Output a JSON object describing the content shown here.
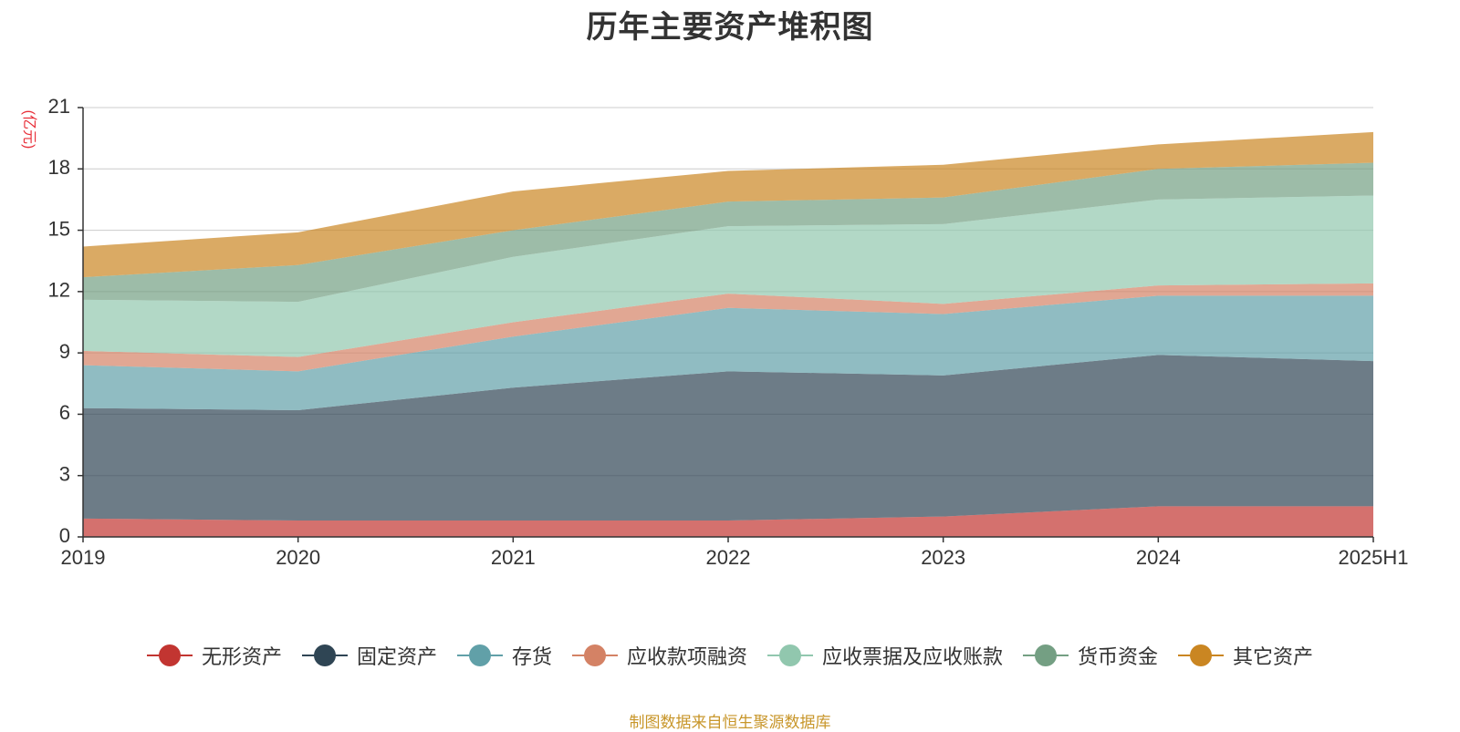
{
  "chart_data": {
    "type": "area",
    "title": "历年主要资产堆积图",
    "ylabel": "(亿元)",
    "xlabel": "",
    "categories": [
      "2019",
      "2020",
      "2021",
      "2022",
      "2023",
      "2024",
      "2025H1"
    ],
    "ylim": [
      0,
      21
    ],
    "yticks": [
      0,
      3,
      6,
      9,
      12,
      15,
      18,
      21
    ],
    "stacked": true,
    "grid": true,
    "legend_position": "bottom",
    "series": [
      {
        "name": "无形资产",
        "color": "#c23531",
        "values": [
          0.9,
          0.8,
          0.8,
          0.8,
          1.0,
          1.5,
          1.5
        ]
      },
      {
        "name": "固定资产",
        "color": "#2f4554",
        "values": [
          5.4,
          5.4,
          6.5,
          7.3,
          6.9,
          7.4,
          7.1
        ]
      },
      {
        "name": "存货",
        "color": "#61a0a8",
        "values": [
          2.1,
          1.9,
          2.5,
          3.1,
          3.0,
          2.9,
          3.2
        ]
      },
      {
        "name": "应收款项融资",
        "color": "#d48265",
        "values": [
          0.7,
          0.7,
          0.7,
          0.7,
          0.5,
          0.5,
          0.6
        ]
      },
      {
        "name": "应收票据及应收账款",
        "color": "#91c7ae",
        "values": [
          2.5,
          2.7,
          3.2,
          3.3,
          3.9,
          4.2,
          4.3
        ]
      },
      {
        "name": "货币资金",
        "color": "#749f83",
        "values": [
          1.1,
          1.8,
          1.3,
          1.2,
          1.3,
          1.5,
          1.6
        ]
      },
      {
        "name": "其它资产",
        "color": "#ca8622",
        "values": [
          1.5,
          1.6,
          1.9,
          1.5,
          1.6,
          1.2,
          1.5
        ]
      }
    ]
  },
  "footer": {
    "source": "制图数据来自恒生聚源数据库"
  }
}
